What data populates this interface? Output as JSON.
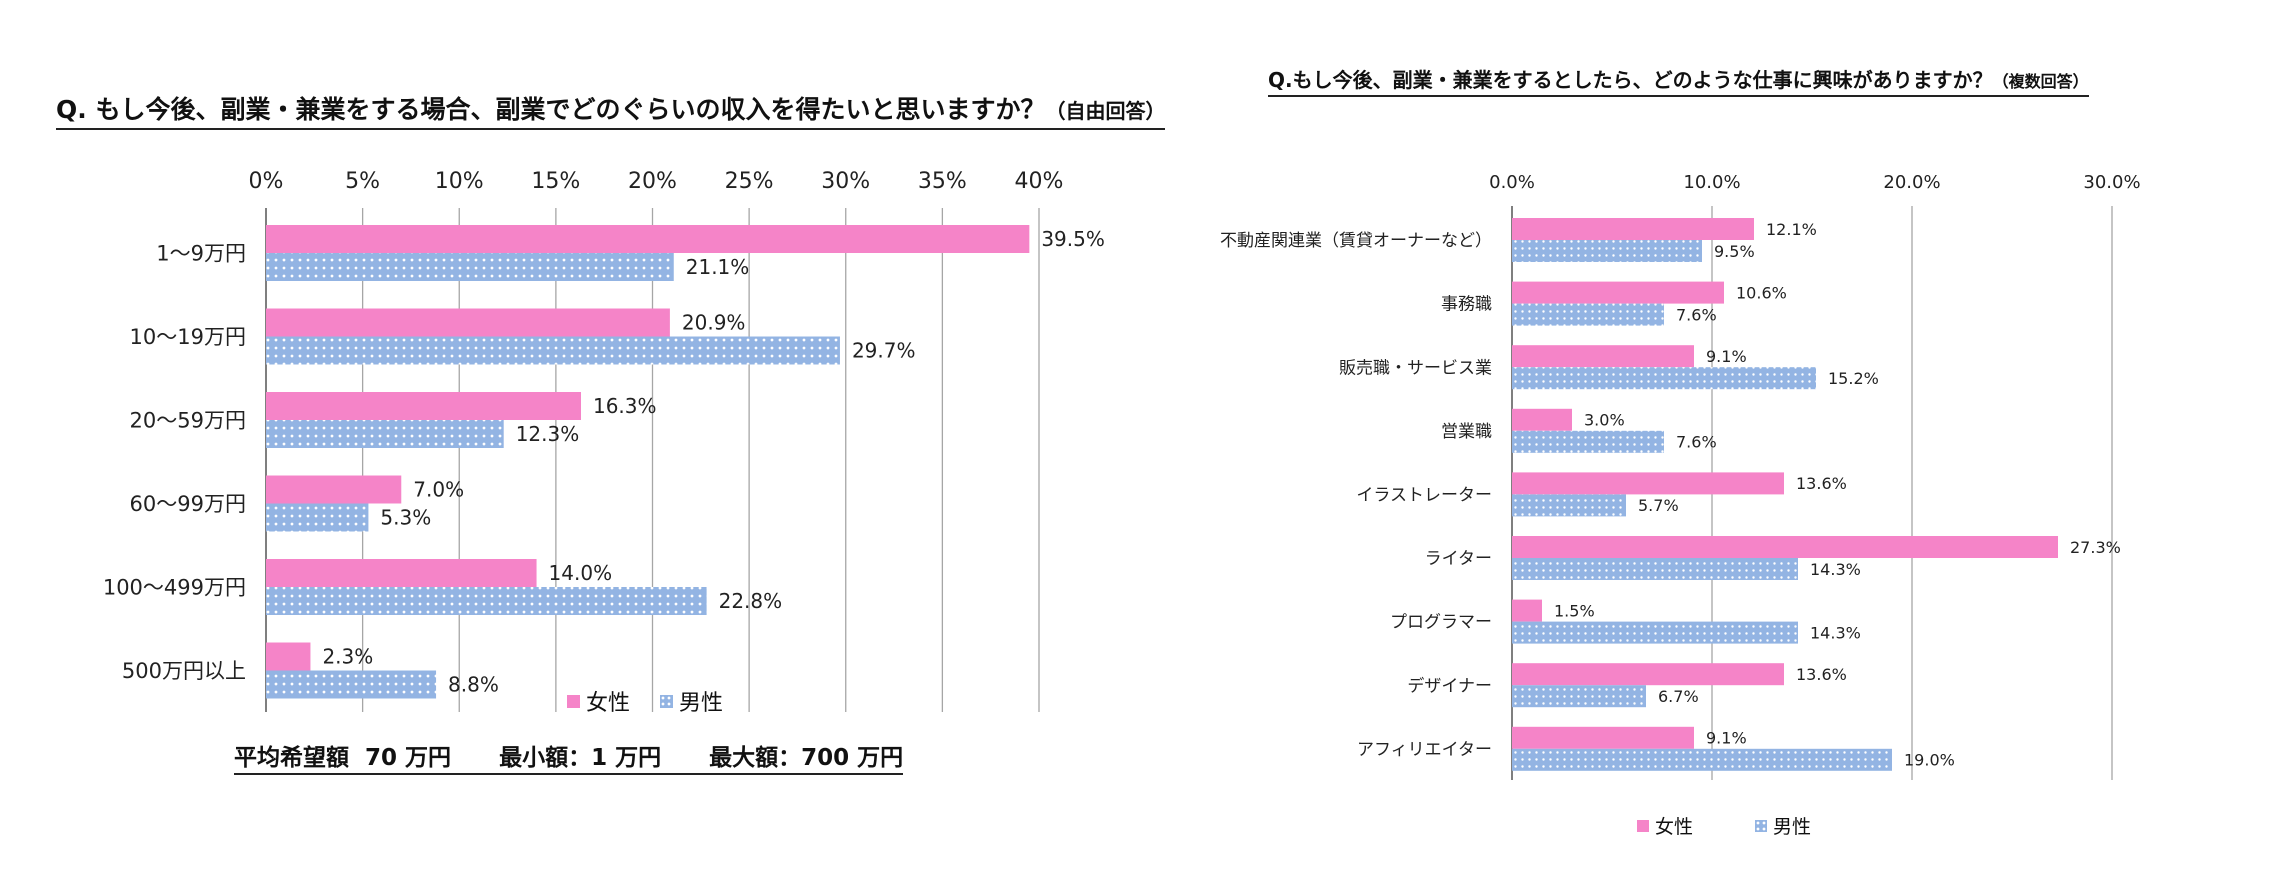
{
  "chart_data": [
    {
      "type": "bar",
      "orientation": "horizontal",
      "title": "Q. もし今後、副業・兼業をする場合、副業でどのぐらいの収入を得たいと思いますか？",
      "title_note": "（自由回答）",
      "categories": [
        "1～9万円",
        "10～19万円",
        "20～59万円",
        "60～99万円",
        "100～499万円",
        "500万円以上"
      ],
      "series": [
        {
          "name": "女性",
          "values": [
            39.5,
            20.9,
            16.3,
            7.0,
            14.0,
            2.3
          ],
          "labels": [
            "39.5%",
            "20.9%",
            "16.3%",
            "7.0%",
            "14.0%",
            "2.3%"
          ]
        },
        {
          "name": "男性",
          "values": [
            21.1,
            29.7,
            12.3,
            5.3,
            22.8,
            8.8
          ],
          "labels": [
            "21.1%",
            "29.7%",
            "12.3%",
            "5.3%",
            "22.8%",
            "8.8%"
          ]
        }
      ],
      "xlim": [
        0,
        40
      ],
      "ticks": [
        0,
        5,
        10,
        15,
        20,
        25,
        30,
        35,
        40
      ],
      "tick_labels": [
        "0%",
        "5%",
        "10%",
        "15%",
        "20%",
        "25%",
        "30%",
        "35%",
        "40%"
      ],
      "axis_position": "top",
      "grid": true,
      "legend": "bottom-right",
      "annotation": "平均希望額  70 万円      最小額：1 万円      最大額：700 万円"
    },
    {
      "type": "bar",
      "orientation": "horizontal",
      "title": "Q.もし今後、副業・兼業をするとしたら、どのような仕事に興味がありますか？",
      "title_note": "（複数回答）",
      "categories": [
        "不動産関連業（賃貸オーナーなど）",
        "事務職",
        "販売職・サービス業",
        "営業職",
        "イラストレーター",
        "ライター",
        "プログラマー",
        "デザイナー",
        "アフィリエイター"
      ],
      "series": [
        {
          "name": "女性",
          "values": [
            12.1,
            10.6,
            9.1,
            3.0,
            13.6,
            27.3,
            1.5,
            13.6,
            9.1
          ],
          "labels": [
            "12.1%",
            "10.6%",
            "9.1%",
            "3.0%",
            "13.6%",
            "27.3%",
            "1.5%",
            "13.6%",
            "9.1%"
          ]
        },
        {
          "name": "男性",
          "values": [
            9.5,
            7.6,
            15.2,
            7.6,
            5.7,
            14.3,
            14.3,
            6.7,
            19.0
          ],
          "labels": [
            "9.5%",
            "7.6%",
            "15.2%",
            "7.6%",
            "5.7%",
            "14.3%",
            "14.3%",
            "6.7%",
            "19.0%"
          ]
        }
      ],
      "xlim": [
        0,
        30
      ],
      "ticks": [
        0,
        10,
        20,
        30
      ],
      "tick_labels": [
        "0.0%",
        "10.0%",
        "20.0%",
        "30.0%"
      ],
      "axis_position": "top",
      "grid": true,
      "legend": "bottom-center"
    }
  ],
  "colors": {
    "female": "#f584c8",
    "male": "#93b4e3",
    "grid": "#a6a6a6",
    "axis": "#7f7f7f"
  }
}
